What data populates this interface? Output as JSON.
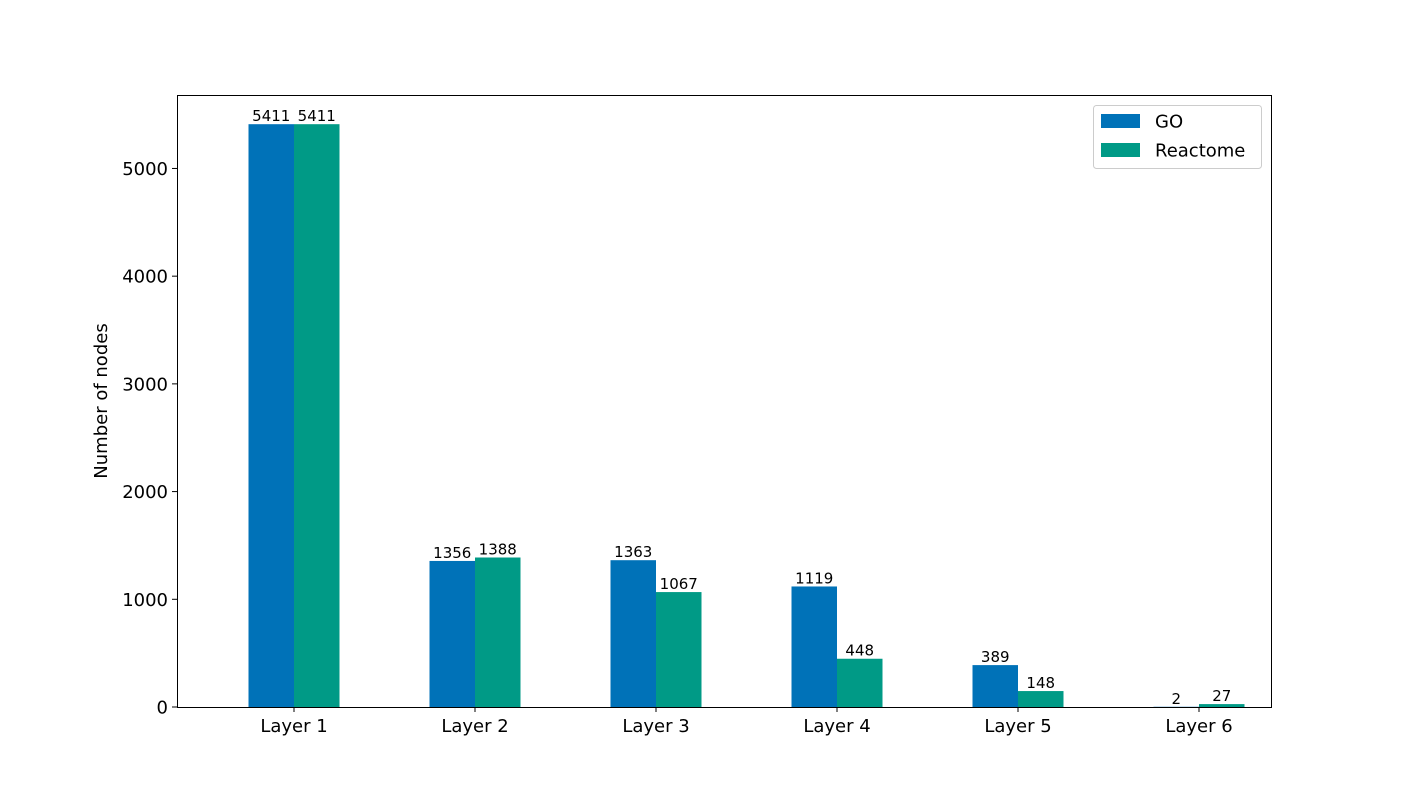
{
  "chart_data": {
    "type": "bar",
    "title": "",
    "xlabel": "",
    "ylabel": "Number of nodes",
    "categories": [
      "Layer 1",
      "Layer 2",
      "Layer 3",
      "Layer 4",
      "Layer 5",
      "Layer 6"
    ],
    "series": [
      {
        "name": "GO",
        "color": "#0072b8",
        "values": [
          5411,
          1356,
          1363,
          1119,
          389,
          2
        ]
      },
      {
        "name": "Reactome",
        "color": "#009a86",
        "values": [
          5411,
          1388,
          1067,
          448,
          148,
          27
        ]
      }
    ],
    "ylim": [
      0,
      5682
    ],
    "yticks": [
      0,
      1000,
      2000,
      3000,
      4000,
      5000
    ],
    "grid": false,
    "legend": "top-right",
    "data_labels": true
  }
}
